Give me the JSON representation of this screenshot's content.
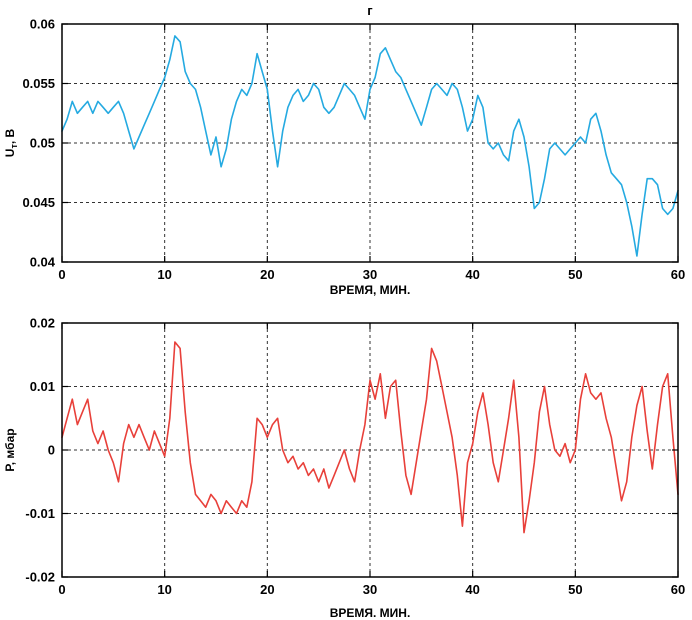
{
  "colors": {
    "axis": "#000000",
    "grid": "#333333",
    "background": "#ffffff",
    "voltage_line": "#25aae1",
    "pressure_line": "#e8403a"
  },
  "chart_data": [
    {
      "type": "line",
      "title": "г",
      "xlabel": "ВРЕМЯ, МИН.",
      "ylabel": "Uт, В",
      "ylabel_parts": [
        {
          "t": "U"
        },
        {
          "t": "т",
          "sub": true
        },
        {
          "t": ", В"
        }
      ],
      "xlim": [
        0,
        60
      ],
      "ylim": [
        0.04,
        0.06
      ],
      "xticks": [
        0,
        10,
        20,
        30,
        40,
        50,
        60
      ],
      "xtick_labels": [
        "0",
        "10",
        "20",
        "30",
        "40",
        "50",
        "60"
      ],
      "yticks": [
        0.04,
        0.045,
        0.05,
        0.055,
        0.06
      ],
      "ytick_labels": [
        "0.04",
        "0.045",
        "0.05",
        "0.055",
        "0.06"
      ],
      "grid": "dashed",
      "legend": "none",
      "line_color": "#25aae1",
      "x_start": 0,
      "x_step": 0.5,
      "y": [
        0.051,
        0.052,
        0.0535,
        0.0525,
        0.053,
        0.0535,
        0.0525,
        0.0535,
        0.053,
        0.0525,
        0.053,
        0.0535,
        0.0525,
        0.051,
        0.0495,
        0.0505,
        0.0515,
        0.0525,
        0.0535,
        0.0545,
        0.0555,
        0.057,
        0.059,
        0.0585,
        0.056,
        0.055,
        0.0545,
        0.053,
        0.051,
        0.049,
        0.0505,
        0.048,
        0.0495,
        0.052,
        0.0535,
        0.0545,
        0.054,
        0.055,
        0.0575,
        0.056,
        0.0545,
        0.051,
        0.048,
        0.051,
        0.053,
        0.054,
        0.0545,
        0.0535,
        0.054,
        0.055,
        0.0545,
        0.053,
        0.0525,
        0.053,
        0.054,
        0.055,
        0.0545,
        0.054,
        0.053,
        0.052,
        0.0545,
        0.0555,
        0.0575,
        0.058,
        0.057,
        0.056,
        0.0555,
        0.0545,
        0.0535,
        0.0525,
        0.0515,
        0.053,
        0.0545,
        0.055,
        0.0545,
        0.054,
        0.055,
        0.0545,
        0.053,
        0.051,
        0.052,
        0.054,
        0.053,
        0.05,
        0.0495,
        0.05,
        0.049,
        0.0485,
        0.051,
        0.052,
        0.0505,
        0.048,
        0.0445,
        0.045,
        0.047,
        0.0495,
        0.05,
        0.0495,
        0.049,
        0.0495,
        0.05,
        0.0505,
        0.05,
        0.052,
        0.0525,
        0.051,
        0.049,
        0.0475,
        0.047,
        0.0465,
        0.045,
        0.043,
        0.0405,
        0.044,
        0.047,
        0.047,
        0.0465,
        0.0445,
        0.044,
        0.0445,
        0.046
      ]
    },
    {
      "type": "line",
      "title": "",
      "xlabel": "ВРЕМЯ. МИН.",
      "ylabel": "Р, мбар",
      "ylabel_parts": [
        {
          "t": "Р, мбар"
        }
      ],
      "xlim": [
        0,
        60
      ],
      "ylim": [
        -0.02,
        0.02
      ],
      "xticks": [
        0,
        10,
        20,
        30,
        40,
        50,
        60
      ],
      "xtick_labels": [
        "0",
        "10",
        "20",
        "30",
        "40",
        "50",
        "60"
      ],
      "yticks": [
        -0.02,
        -0.01,
        0,
        0.01,
        0.02
      ],
      "ytick_labels": [
        "-0.02",
        "-0.01",
        "0",
        "0.01",
        "0.02"
      ],
      "grid": "dashed",
      "legend": "none",
      "line_color": "#e8403a",
      "x_start": 0,
      "x_step": 0.5,
      "y": [
        0.002,
        0.005,
        0.008,
        0.004,
        0.006,
        0.008,
        0.003,
        0.001,
        0.003,
        0,
        -0.002,
        -0.005,
        0.001,
        0.004,
        0.002,
        0.004,
        0.002,
        0,
        0.003,
        0.001,
        -0.001,
        0.005,
        0.017,
        0.016,
        0.006,
        -0.002,
        -0.007,
        -0.008,
        -0.009,
        -0.007,
        -0.008,
        -0.01,
        -0.008,
        -0.009,
        -0.01,
        -0.008,
        -0.009,
        -0.005,
        0.005,
        0.004,
        0.002,
        0.004,
        0.005,
        0,
        -0.002,
        -0.001,
        -0.003,
        -0.002,
        -0.004,
        -0.003,
        -0.005,
        -0.003,
        -0.006,
        -0.004,
        -0.002,
        0,
        -0.003,
        -0.005,
        0,
        0.004,
        0.011,
        0.008,
        0.012,
        0.005,
        0.01,
        0.011,
        0.003,
        -0.004,
        -0.007,
        -0.002,
        0.003,
        0.008,
        0.016,
        0.014,
        0.01,
        0.006,
        0.002,
        -0.004,
        -0.012,
        -0.002,
        0.001,
        0.006,
        0.009,
        0.004,
        -0.002,
        -0.005,
        0,
        0.005,
        0.011,
        0.002,
        -0.013,
        -0.008,
        -0.002,
        0.006,
        0.01,
        0.004,
        0,
        -0.001,
        0.001,
        -0.002,
        0,
        0.008,
        0.012,
        0.009,
        0.008,
        0.009,
        0.005,
        0.002,
        -0.003,
        -0.008,
        -0.005,
        0.002,
        0.007,
        0.01,
        0.003,
        -0.003,
        0.004,
        0.01,
        0.012,
        0.002,
        -0.007
      ]
    }
  ]
}
